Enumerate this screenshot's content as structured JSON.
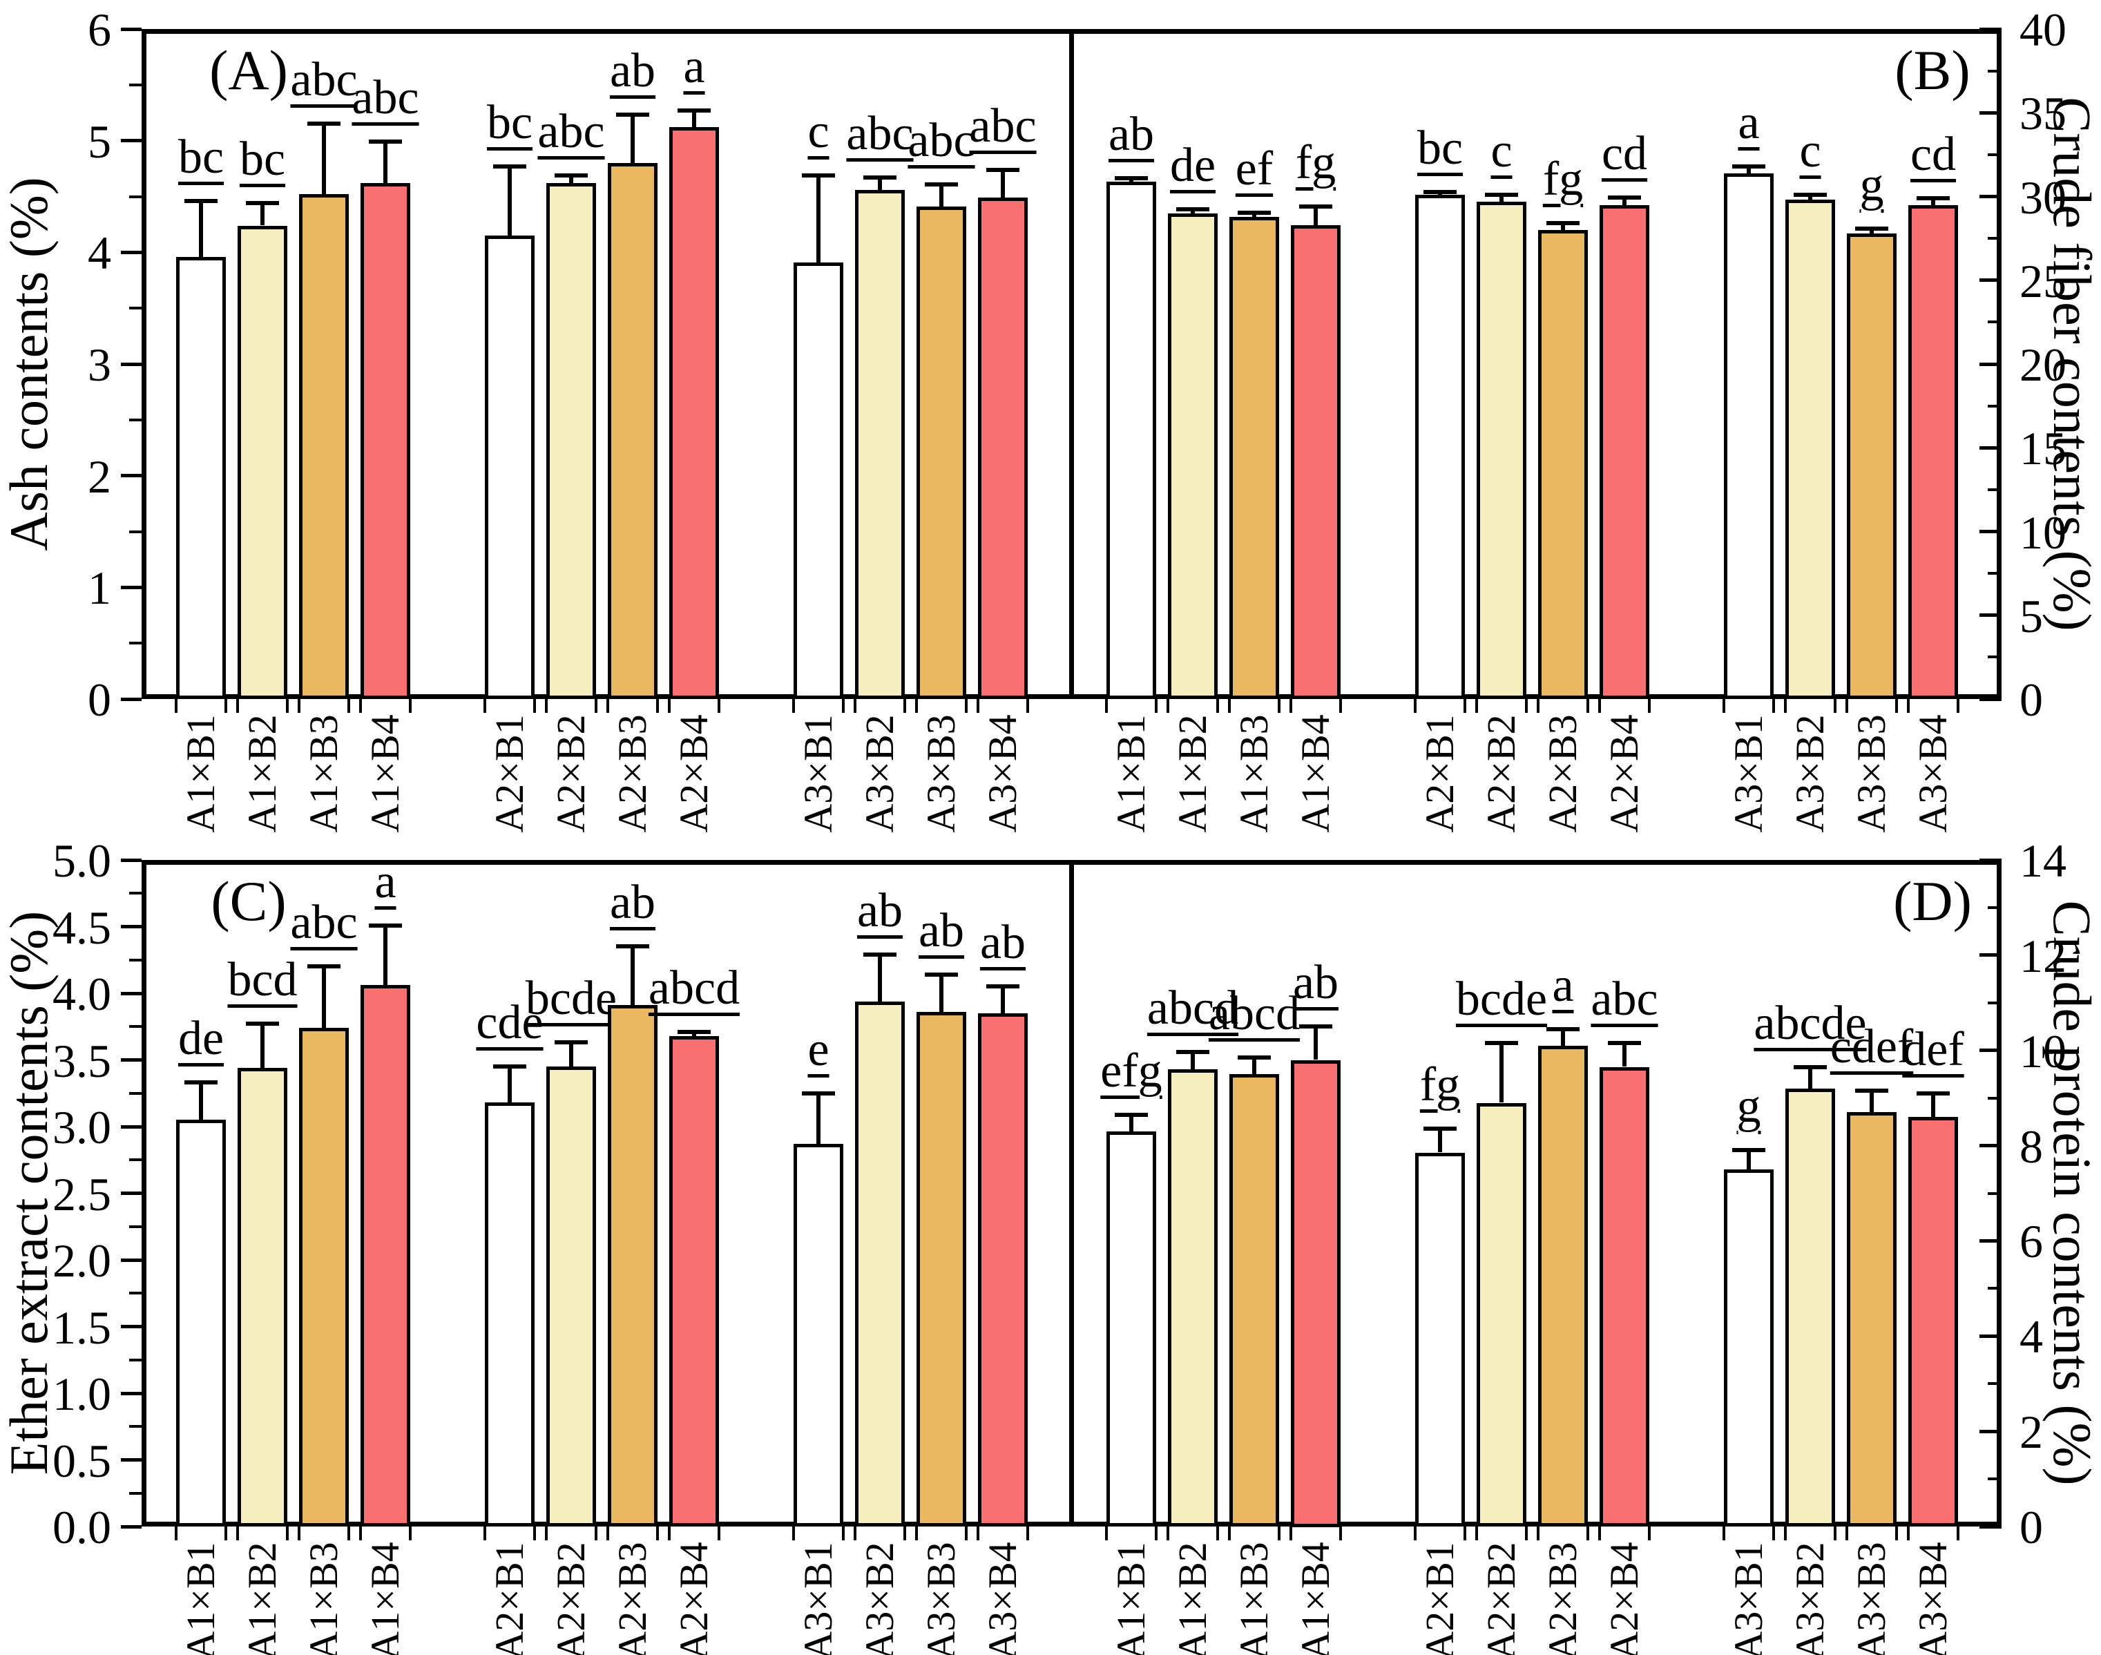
{
  "figure": {
    "description": "Four-panel grouped bar chart of proximate composition with error bars and significance letters",
    "background": "#ffffff",
    "bar_colors": [
      "#FFFFFF",
      "#F5EEBE",
      "#EAB95F",
      "#F97070"
    ],
    "line_color": "#000000"
  },
  "chart_data": [
    {
      "type": "bar",
      "panel_label": "(A)",
      "ylabel": "Ash contents (%)",
      "axis_side": "left",
      "ylim": [
        0,
        6
      ],
      "ytick_labels": [
        "0",
        "1",
        "2",
        "3",
        "4",
        "5",
        "6"
      ],
      "minor_step": 0.5,
      "grid": false,
      "legend": "none",
      "categories": [
        "A1×B1",
        "A1×B2",
        "A1×B3",
        "A1×B4",
        "A2×B1",
        "A2×B2",
        "A2×B3",
        "A2×B4",
        "A3×B1",
        "A3×B2",
        "A3×B3",
        "A3×B4"
      ],
      "values": [
        3.96,
        4.24,
        4.52,
        4.62,
        4.15,
        4.62,
        4.8,
        5.12,
        3.91,
        4.56,
        4.41,
        4.49
      ],
      "errors": [
        0.5,
        0.2,
        0.63,
        0.37,
        0.62,
        0.07,
        0.43,
        0.15,
        0.78,
        0.11,
        0.2,
        0.25
      ],
      "sig_labels": [
        "bc",
        "bc",
        "abc",
        "abc",
        "bc",
        "abc",
        "ab",
        "a",
        "c",
        "abc",
        "abc",
        "abc"
      ]
    },
    {
      "type": "bar",
      "panel_label": "(B)",
      "ylabel": "Crude fiber contents (%)",
      "axis_side": "right",
      "ylim": [
        0,
        40
      ],
      "ytick_labels": [
        "0",
        "5",
        "10",
        "15",
        "20",
        "25",
        "30",
        "35",
        "40"
      ],
      "minor_step": 2.5,
      "grid": false,
      "legend": "none",
      "categories": [
        "A1×B1",
        "A1×B2",
        "A1×B3",
        "A1×B4",
        "A2×B1",
        "A2×B2",
        "A2×B3",
        "A2×B4",
        "A3×B1",
        "A3×B2",
        "A3×B3",
        "A3×B4"
      ],
      "values": [
        30.9,
        29.0,
        28.8,
        28.3,
        30.1,
        29.7,
        28.0,
        29.5,
        31.4,
        29.8,
        27.8,
        29.5
      ],
      "errors": [
        0.2,
        0.25,
        0.25,
        1.1,
        0.15,
        0.4,
        0.4,
        0.45,
        0.4,
        0.3,
        0.3,
        0.4
      ],
      "sig_labels": [
        "ab",
        "de",
        "ef",
        "fg",
        "bc",
        "c",
        "fg",
        "cd",
        "a",
        "c",
        "g",
        "cd"
      ]
    },
    {
      "type": "bar",
      "panel_label": "(C)",
      "ylabel": "Ether extract contents (%)",
      "axis_side": "left",
      "ylim": [
        0,
        5
      ],
      "ytick_labels": [
        "0.0",
        "0.5",
        "1.0",
        "1.5",
        "2.0",
        "2.5",
        "3.0",
        "3.5",
        "4.0",
        "4.5",
        "5.0"
      ],
      "minor_step": 0.25,
      "grid": false,
      "legend": "none",
      "categories": [
        "A1×B1",
        "A1×B2",
        "A1×B3",
        "A1×B4",
        "A2×B1",
        "A2×B2",
        "A2×B3",
        "A2×B4",
        "A3×B1",
        "A3×B2",
        "A3×B3",
        "A3×B4"
      ],
      "values": [
        3.05,
        3.44,
        3.74,
        4.06,
        3.18,
        3.45,
        3.91,
        3.68,
        2.87,
        3.94,
        3.86,
        3.85
      ],
      "errors": [
        0.28,
        0.33,
        0.46,
        0.45,
        0.27,
        0.18,
        0.44,
        0.03,
        0.38,
        0.35,
        0.28,
        0.2
      ],
      "sig_labels": [
        "de",
        "bcd",
        "abc",
        "a",
        "cde",
        "bcde",
        "ab",
        "abcd",
        "e",
        "ab",
        "ab",
        "ab"
      ]
    },
    {
      "type": "bar",
      "panel_label": "(D)",
      "ylabel": "Crude protein contents (%)",
      "axis_side": "right",
      "ylim": [
        0,
        14
      ],
      "ytick_labels": [
        "0",
        "2",
        "4",
        "6",
        "8",
        "10",
        "12",
        "14"
      ],
      "minor_step": 1,
      "grid": false,
      "legend": "none",
      "categories": [
        "A1×B1",
        "A1×B2",
        "A1×B3",
        "A1×B4",
        "A2×B1",
        "A2×B2",
        "A2×B3",
        "A2×B4",
        "A3×B1",
        "A3×B2",
        "A3×B3",
        "A3×B4"
      ],
      "values": [
        8.3,
        9.6,
        9.5,
        9.8,
        7.85,
        8.9,
        10.1,
        9.65,
        7.5,
        9.2,
        8.7,
        8.6
      ],
      "errors": [
        0.35,
        0.36,
        0.35,
        0.7,
        0.5,
        1.25,
        0.35,
        0.5,
        0.4,
        0.45,
        0.45,
        0.5
      ],
      "sig_labels": [
        "efg",
        "abcd",
        "abcd",
        "ab",
        "fg",
        "bcde",
        "a",
        "abc",
        "g",
        "abcde",
        "cdef",
        "def"
      ]
    }
  ]
}
